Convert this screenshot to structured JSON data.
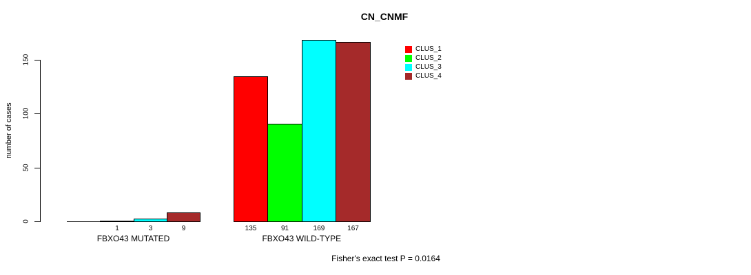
{
  "chart_data": {
    "type": "bar",
    "title": "CN_CNMF",
    "ylabel": "number of cases",
    "yticks": [
      0,
      50,
      100,
      150
    ],
    "ylim": [
      0,
      175
    ],
    "grid": false,
    "legend_position": "top-right",
    "series": [
      {
        "name": "CLUS_1",
        "color": "#FF0000"
      },
      {
        "name": "CLUS_2",
        "color": "#00FF00"
      },
      {
        "name": "CLUS_3",
        "color": "#00FFFF"
      },
      {
        "name": "CLUS_4",
        "color": "#A52A2A"
      }
    ],
    "groups": [
      {
        "label": "FBXO43 MUTATED",
        "values": [
          0,
          1,
          3,
          9
        ],
        "bar_labels": [
          "",
          "1",
          "3",
          "9"
        ]
      },
      {
        "label": "FBXO43 WILD-TYPE",
        "values": [
          135,
          91,
          169,
          167
        ],
        "bar_labels": [
          "135",
          "91",
          "169",
          "167"
        ]
      }
    ],
    "footer": "Fisher's exact test P = 0.0164",
    "axis_color": "#000000",
    "bar_border_color": "#000000"
  }
}
